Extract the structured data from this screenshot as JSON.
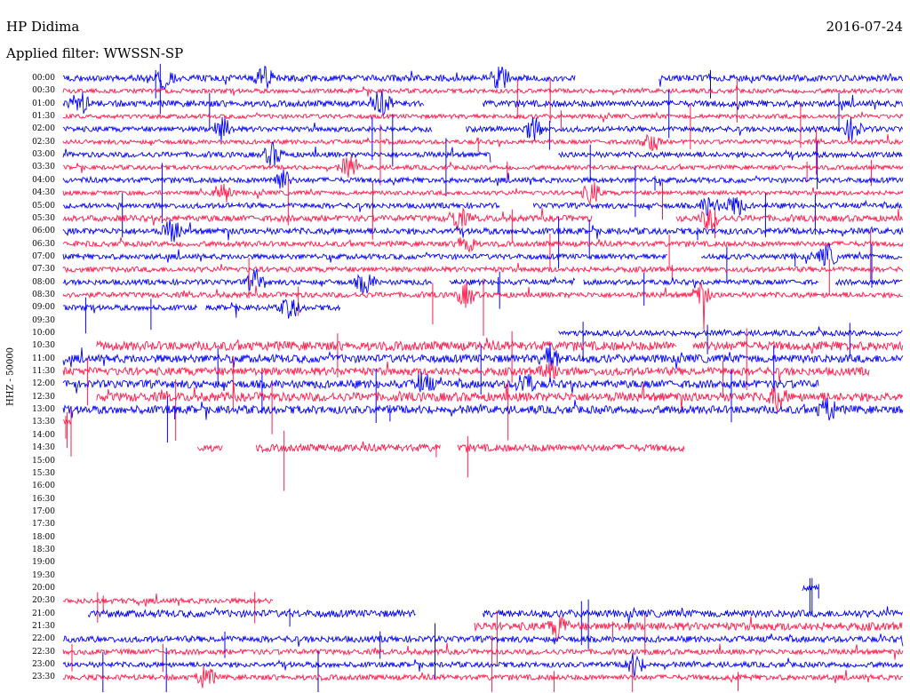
{
  "header": {
    "station": "HP Didima",
    "date": "2016-07-24",
    "filter_prefix": "Applied filter:",
    "filter_name": "WWSSN-SP"
  },
  "chart_data": {
    "type": "line",
    "title": "",
    "channel_label": "HHZ - 50000",
    "trace_colors": [
      "#0000ff",
      "#ff1a4b"
    ],
    "grid": false,
    "rows": [
      {
        "time": "00:00",
        "segments": [
          [
            0,
            0.61
          ],
          [
            0.71,
            1.0
          ]
        ],
        "amplitude": 0.35,
        "events": [
          0.12,
          0.24,
          0.52
        ]
      },
      {
        "time": "00:30",
        "segments": [
          [
            0,
            1.0
          ]
        ],
        "amplitude": 0.25,
        "events": []
      },
      {
        "time": "01:00",
        "segments": [
          [
            0,
            0.43
          ],
          [
            0.5,
            1.0
          ]
        ],
        "amplitude": 0.35,
        "events": [
          0.02,
          0.38
        ]
      },
      {
        "time": "01:30",
        "segments": [
          [
            0,
            1.0
          ]
        ],
        "amplitude": 0.25,
        "events": []
      },
      {
        "time": "02:00",
        "segments": [
          [
            0,
            0.44
          ],
          [
            0.48,
            1.0
          ]
        ],
        "amplitude": 0.3,
        "events": [
          0.19,
          0.56,
          0.94
        ]
      },
      {
        "time": "02:30",
        "segments": [
          [
            0,
            1.0
          ]
        ],
        "amplitude": 0.25,
        "events": [
          0.7
        ]
      },
      {
        "time": "03:00",
        "segments": [
          [
            0,
            0.51
          ],
          [
            0.59,
            1.0
          ]
        ],
        "amplitude": 0.3,
        "events": [
          0.25
        ]
      },
      {
        "time": "03:30",
        "segments": [
          [
            0,
            1.0
          ]
        ],
        "amplitude": 0.25,
        "events": [
          0.34
        ]
      },
      {
        "time": "04:00",
        "segments": [
          [
            0,
            1.0
          ]
        ],
        "amplitude": 0.3,
        "events": [
          0.26
        ]
      },
      {
        "time": "04:30",
        "segments": [
          [
            0,
            1.0
          ]
        ],
        "amplitude": 0.25,
        "events": [
          0.19,
          0.63
        ]
      },
      {
        "time": "05:00",
        "segments": [
          [
            0,
            0.52
          ],
          [
            0.56,
            1.0
          ]
        ],
        "amplitude": 0.3,
        "events": [
          0.77,
          0.8
        ]
      },
      {
        "time": "05:30",
        "segments": [
          [
            0,
            0.63
          ],
          [
            0.73,
            1.0
          ]
        ],
        "amplitude": 0.35,
        "events": [
          0.47,
          0.77
        ]
      },
      {
        "time": "06:00",
        "segments": [
          [
            0,
            1.0
          ]
        ],
        "amplitude": 0.35,
        "events": [
          0.13
        ]
      },
      {
        "time": "06:30",
        "segments": [
          [
            0,
            1.0
          ]
        ],
        "amplitude": 0.3,
        "events": [
          0.48
        ]
      },
      {
        "time": "07:00",
        "segments": [
          [
            0,
            0.72
          ],
          [
            0.76,
            1.0
          ]
        ],
        "amplitude": 0.3,
        "events": [
          0.91
        ]
      },
      {
        "time": "07:30",
        "segments": [
          [
            0,
            1.0
          ]
        ],
        "amplitude": 0.3,
        "events": []
      },
      {
        "time": "08:00",
        "segments": [
          [
            0,
            0.44
          ],
          [
            0.46,
            0.61
          ],
          [
            0.62,
            0.9
          ],
          [
            0.92,
            1.0
          ]
        ],
        "amplitude": 0.3,
        "events": [
          0.23,
          0.36
        ]
      },
      {
        "time": "08:30",
        "segments": [
          [
            0,
            1.0
          ]
        ],
        "amplitude": 0.3,
        "events": [
          0.48,
          0.76
        ]
      },
      {
        "time": "09:00",
        "segments": [
          [
            0,
            0.16
          ],
          [
            0.17,
            0.33
          ]
        ],
        "amplitude": 0.3,
        "events": [
          0.27
        ]
      },
      {
        "time": "09:30",
        "segments": [],
        "amplitude": 0.2,
        "events": []
      },
      {
        "time": "10:00",
        "segments": [
          [
            0.59,
            1.0
          ]
        ],
        "amplitude": 0.3,
        "events": []
      },
      {
        "time": "10:30",
        "segments": [
          [
            0.04,
            0.73
          ],
          [
            0.75,
            1.0
          ]
        ],
        "amplitude": 0.5,
        "events": []
      },
      {
        "time": "11:00",
        "segments": [
          [
            0,
            1.0
          ]
        ],
        "amplitude": 0.45,
        "events": [
          0.58
        ]
      },
      {
        "time": "11:30",
        "segments": [
          [
            0.0,
            0.96
          ]
        ],
        "amplitude": 0.45,
        "events": [
          0.58
        ]
      },
      {
        "time": "12:00",
        "segments": [
          [
            0,
            0.9
          ]
        ],
        "amplitude": 0.45,
        "events": [
          0.43,
          0.55
        ]
      },
      {
        "time": "12:30",
        "segments": [
          [
            0.04,
            1.0
          ]
        ],
        "amplitude": 0.5,
        "events": [
          0.85
        ]
      },
      {
        "time": "13:00",
        "segments": [
          [
            0,
            1.0
          ]
        ],
        "amplitude": 0.45,
        "events": [
          0.91
        ]
      },
      {
        "time": "13:30",
        "segments": [
          [
            0,
            0.01
          ]
        ],
        "amplitude": 0.3,
        "events": []
      },
      {
        "time": "14:00",
        "segments": [],
        "amplitude": 0.2,
        "events": []
      },
      {
        "time": "14:30",
        "segments": [
          [
            0.16,
            0.19
          ],
          [
            0.23,
            0.45
          ],
          [
            0.47,
            0.74
          ]
        ],
        "amplitude": 0.4,
        "events": []
      },
      {
        "time": "15:00",
        "segments": [],
        "amplitude": 0.2,
        "events": []
      },
      {
        "time": "15:30",
        "segments": [],
        "amplitude": 0.2,
        "events": []
      },
      {
        "time": "16:00",
        "segments": [],
        "amplitude": 0.2,
        "events": []
      },
      {
        "time": "16:30",
        "segments": [],
        "amplitude": 0.2,
        "events": []
      },
      {
        "time": "17:00",
        "segments": [],
        "amplitude": 0.2,
        "events": []
      },
      {
        "time": "17:30",
        "segments": [],
        "amplitude": 0.2,
        "events": []
      },
      {
        "time": "18:00",
        "segments": [],
        "amplitude": 0.2,
        "events": []
      },
      {
        "time": "18:30",
        "segments": [],
        "amplitude": 0.2,
        "events": []
      },
      {
        "time": "19:00",
        "segments": [],
        "amplitude": 0.2,
        "events": []
      },
      {
        "time": "19:30",
        "segments": [],
        "amplitude": 0.2,
        "events": []
      },
      {
        "time": "20:00",
        "segments": [
          [
            0.88,
            0.9
          ]
        ],
        "amplitude": 0.3,
        "events": []
      },
      {
        "time": "20:30",
        "segments": [
          [
            0.0,
            0.25
          ]
        ],
        "amplitude": 0.3,
        "events": []
      },
      {
        "time": "21:00",
        "segments": [
          [
            0.03,
            0.42
          ],
          [
            0.5,
            1.0
          ]
        ],
        "amplitude": 0.4,
        "events": []
      },
      {
        "time": "21:30",
        "segments": [
          [
            0.49,
            1.0
          ]
        ],
        "amplitude": 0.45,
        "events": [
          0.59
        ]
      },
      {
        "time": "22:00",
        "segments": [
          [
            0,
            1.0
          ]
        ],
        "amplitude": 0.35,
        "events": []
      },
      {
        "time": "22:30",
        "segments": [
          [
            0,
            1.0
          ]
        ],
        "amplitude": 0.3,
        "events": []
      },
      {
        "time": "23:00",
        "segments": [
          [
            0,
            1.0
          ]
        ],
        "amplitude": 0.3,
        "events": [
          0.68
        ]
      },
      {
        "time": "23:30",
        "segments": [
          [
            0,
            1.0
          ]
        ],
        "amplitude": 0.3,
        "events": [
          0.17
        ]
      }
    ]
  }
}
